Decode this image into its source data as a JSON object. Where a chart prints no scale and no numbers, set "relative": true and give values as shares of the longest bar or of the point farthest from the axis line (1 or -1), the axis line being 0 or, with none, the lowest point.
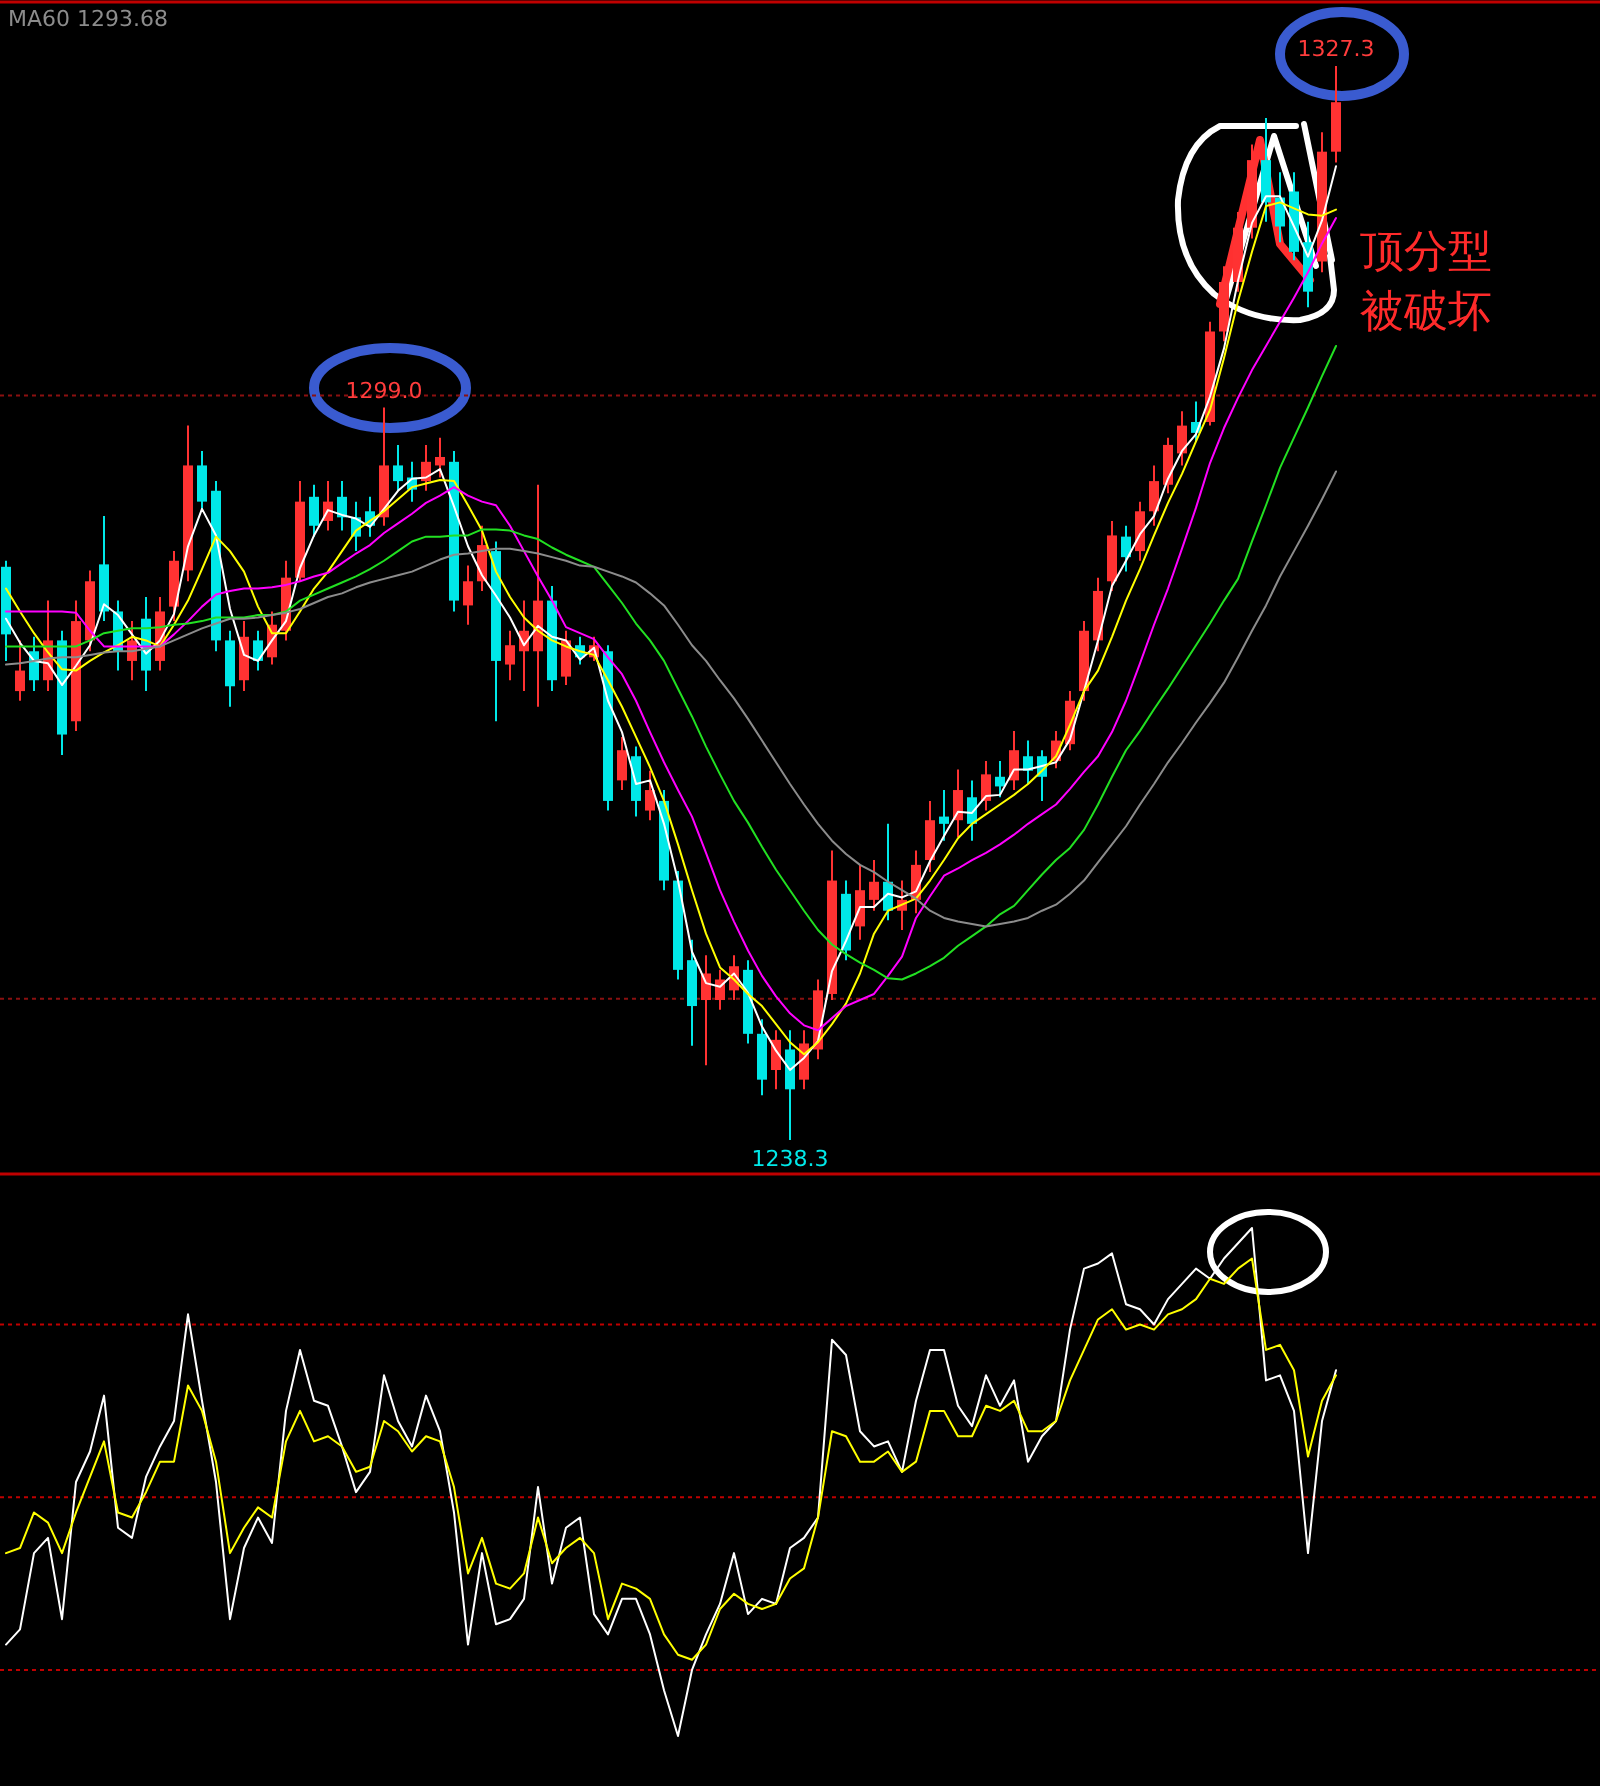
{
  "chart_data": [
    {
      "type": "candlestick",
      "tick_labels": false,
      "categories": [
        null,
        null,
        null,
        null,
        null,
        null,
        null,
        null,
        null,
        null,
        null,
        null,
        null,
        null,
        null,
        null,
        null,
        null,
        null,
        null,
        null,
        null,
        null,
        null,
        null,
        null,
        null,
        null,
        null,
        null,
        null,
        null,
        null,
        null,
        null,
        null,
        null,
        null,
        null,
        null,
        null,
        null,
        null,
        null,
        null,
        null,
        null,
        null,
        null,
        null,
        null,
        null,
        null,
        null,
        null,
        null,
        null,
        null,
        null,
        null,
        null,
        null,
        null,
        null,
        null,
        null,
        null,
        null,
        null,
        null,
        null,
        null,
        null,
        null,
        null,
        null,
        null,
        null,
        null,
        null,
        null,
        null,
        null,
        null,
        null,
        null,
        null,
        null,
        null,
        null,
        null,
        null,
        null,
        null,
        null,
        null
      ],
      "ohlc": [
        [
          1285.8,
          1286.3,
          1278.0,
          1280.2
        ],
        [
          1275.5,
          1279.7,
          1274.7,
          1277.2
        ],
        [
          1278.8,
          1280.0,
          1275.5,
          1276.4
        ],
        [
          1276.4,
          1283.0,
          1275.5,
          1279.7
        ],
        [
          1279.7,
          1280.5,
          1270.2,
          1271.9
        ],
        [
          1273.0,
          1283.0,
          1272.2,
          1281.3
        ],
        [
          1279.7,
          1285.5,
          1278.8,
          1284.6
        ],
        [
          1286.0,
          1290.0,
          1281.3,
          1282.1
        ],
        [
          1282.1,
          1283.0,
          1277.2,
          1278.8
        ],
        [
          1278.0,
          1281.3,
          1276.4,
          1279.7
        ],
        [
          1281.5,
          1283.3,
          1275.5,
          1277.2
        ],
        [
          1278.0,
          1283.3,
          1277.2,
          1282.1
        ],
        [
          1282.5,
          1287.1,
          1281.3,
          1286.3
        ],
        [
          1285.5,
          1297.5,
          1284.6,
          1294.2
        ],
        [
          1294.2,
          1295.4,
          1290.4,
          1291.2
        ],
        [
          1292.1,
          1292.9,
          1278.8,
          1279.7
        ],
        [
          1279.7,
          1280.5,
          1274.2,
          1275.9
        ],
        [
          1276.4,
          1281.3,
          1275.5,
          1280.0
        ],
        [
          1279.7,
          1280.5,
          1277.2,
          1278.0
        ],
        [
          1278.3,
          1282.1,
          1277.7,
          1281.0
        ],
        [
          1280.5,
          1286.3,
          1279.7,
          1284.9
        ],
        [
          1284.9,
          1292.9,
          1284.6,
          1291.2
        ],
        [
          1291.6,
          1292.6,
          1288.3,
          1289.2
        ],
        [
          1289.6,
          1292.9,
          1288.8,
          1291.2
        ],
        [
          1291.6,
          1292.9,
          1288.8,
          1289.9
        ],
        [
          1289.9,
          1291.2,
          1287.1,
          1288.3
        ],
        [
          1290.4,
          1291.6,
          1288.3,
          1289.2
        ],
        [
          1289.9,
          1299.0,
          1289.2,
          1294.2
        ],
        [
          1294.2,
          1295.9,
          1292.1,
          1292.9
        ],
        [
          1293.2,
          1294.5,
          1291.2,
          1292.2
        ],
        [
          1292.9,
          1295.9,
          1292.1,
          1294.5
        ],
        [
          1294.2,
          1296.5,
          1293.2,
          1294.9
        ],
        [
          1294.5,
          1295.4,
          1282.1,
          1283.0
        ],
        [
          1282.6,
          1285.9,
          1281.0,
          1284.6
        ],
        [
          1284.6,
          1289.2,
          1283.8,
          1287.6
        ],
        [
          1287.1,
          1287.9,
          1273.0,
          1278.0
        ],
        [
          1277.7,
          1280.5,
          1276.4,
          1279.3
        ],
        [
          1278.8,
          1283.0,
          1275.5,
          1280.5
        ],
        [
          1278.8,
          1292.6,
          1274.2,
          1283.0
        ],
        [
          1283.0,
          1284.2,
          1275.5,
          1276.4
        ],
        [
          1276.7,
          1280.5,
          1276.0,
          1279.7
        ],
        [
          1279.3,
          1280.0,
          1277.7,
          1278.3
        ],
        [
          1278.3,
          1280.0,
          1278.0,
          1279.3
        ],
        [
          1278.8,
          1279.3,
          1265.6,
          1266.4
        ],
        [
          1268.1,
          1271.7,
          1267.3,
          1270.6
        ],
        [
          1270.1,
          1270.9,
          1265.1,
          1266.4
        ],
        [
          1265.6,
          1268.9,
          1264.8,
          1267.3
        ],
        [
          1266.4,
          1267.3,
          1259.0,
          1259.8
        ],
        [
          1259.8,
          1260.6,
          1251.6,
          1252.4
        ],
        [
          1253.2,
          1254.9,
          1246.1,
          1249.4
        ],
        [
          1249.9,
          1253.6,
          1244.5,
          1252.1
        ],
        [
          1249.9,
          1252.4,
          1249.1,
          1251.6
        ],
        [
          1250.7,
          1253.6,
          1249.9,
          1252.7
        ],
        [
          1252.4,
          1253.2,
          1246.3,
          1247.1
        ],
        [
          1247.1,
          1248.3,
          1242.0,
          1243.3
        ],
        [
          1244.1,
          1247.4,
          1242.5,
          1246.6
        ],
        [
          1245.8,
          1247.4,
          1238.3,
          1242.5
        ],
        [
          1243.3,
          1247.4,
          1242.5,
          1246.3
        ],
        [
          1245.8,
          1251.6,
          1245.0,
          1250.7
        ],
        [
          1250.4,
          1262.3,
          1249.9,
          1259.8
        ],
        [
          1258.7,
          1259.8,
          1253.2,
          1254.0
        ],
        [
          1256.0,
          1261.1,
          1254.9,
          1259.0
        ],
        [
          1258.2,
          1261.5,
          1257.3,
          1259.7
        ],
        [
          1259.7,
          1264.5,
          1256.5,
          1257.3
        ],
        [
          1257.3,
          1259.8,
          1255.7,
          1258.2
        ],
        [
          1258.2,
          1262.3,
          1257.1,
          1261.1
        ],
        [
          1261.5,
          1266.4,
          1260.5,
          1264.8
        ],
        [
          1265.1,
          1267.3,
          1263.1,
          1264.5
        ],
        [
          1264.8,
          1269.0,
          1263.4,
          1267.3
        ],
        [
          1266.7,
          1268.1,
          1263.1,
          1264.5
        ],
        [
          1266.4,
          1269.7,
          1265.6,
          1268.6
        ],
        [
          1268.4,
          1269.7,
          1266.7,
          1267.6
        ],
        [
          1268.1,
          1272.2,
          1267.3,
          1270.6
        ],
        [
          1270.1,
          1271.4,
          1267.8,
          1268.9
        ],
        [
          1270.1,
          1270.6,
          1266.4,
          1268.4
        ],
        [
          1269.7,
          1272.2,
          1269.1,
          1271.4
        ],
        [
          1271.1,
          1275.5,
          1270.6,
          1274.7
        ],
        [
          1275.5,
          1281.3,
          1274.7,
          1280.5
        ],
        [
          1279.7,
          1284.9,
          1278.8,
          1283.8
        ],
        [
          1284.6,
          1289.6,
          1283.8,
          1288.4
        ],
        [
          1288.3,
          1289.2,
          1285.4,
          1286.6
        ],
        [
          1287.1,
          1291.2,
          1286.3,
          1290.4
        ],
        [
          1290.4,
          1294.2,
          1289.2,
          1292.9
        ],
        [
          1292.6,
          1296.5,
          1291.9,
          1295.9
        ],
        [
          1295.2,
          1298.7,
          1294.2,
          1297.5
        ],
        [
          1297.8,
          1299.5,
          1296.2,
          1296.9
        ],
        [
          1297.8,
          1306.1,
          1297.5,
          1305.3
        ],
        [
          1305.3,
          1310.7,
          1304.5,
          1309.4
        ],
        [
          1309.4,
          1315.2,
          1308.6,
          1313.9
        ],
        [
          1313.9,
          1320.8,
          1313.0,
          1319.5
        ],
        [
          1319.5,
          1323.0,
          1314.4,
          1316.0
        ],
        [
          1316.4,
          1318.5,
          1312.7,
          1314.0
        ],
        [
          1316.9,
          1318.5,
          1311.2,
          1311.9
        ],
        [
          1312.7,
          1314.4,
          1307.3,
          1308.6
        ],
        [
          1311.1,
          1321.8,
          1310.2,
          1320.2
        ],
        [
          1320.2,
          1327.3,
          1319.3,
          1324.3
        ]
      ],
      "series": [
        {
          "type": "line",
          "color": "#ffffff",
          "values": [
            1281.5,
            1279.5,
            1278.0,
            1277.8,
            1276.0,
            1277.6,
            1279.3,
            1282.7,
            1281.8,
            1280.2,
            1278.6,
            1279.7,
            1281.9,
            1287.5,
            1290.6,
            1288.4,
            1282.3,
            1278.5,
            1278.0,
            1279.7,
            1281.3,
            1285.7,
            1288.4,
            1290.5,
            1290.1,
            1289.8,
            1289.1,
            1290.6,
            1292.1,
            1293.1,
            1293.2,
            1293.9,
            1290.8,
            1287.5,
            1285.1,
            1283.4,
            1281.6,
            1279.3,
            1280.9,
            1280.0,
            1279.7,
            1278.1,
            1279.1,
            1274.7,
            1272.1,
            1267.8,
            1268.1,
            1264.5,
            1259.8,
            1253.9,
            1251.3,
            1251.0,
            1252.1,
            1250.5,
            1247.7,
            1245.7,
            1244.1,
            1245.1,
            1246.5,
            1252.3,
            1254.8,
            1257.6,
            1257.6,
            1258.7,
            1258.4,
            1258.9,
            1261.4,
            1263.5,
            1265.5,
            1265.4,
            1266.8,
            1266.9,
            1269.0,
            1269.0,
            1269.3,
            1269.6,
            1271.5,
            1275.5,
            1279.7,
            1284.2,
            1286.3,
            1288.5,
            1290.0,
            1293.1,
            1295.4,
            1296.8,
            1299.9,
            1303.9,
            1309.5,
            1314.3,
            1316.5,
            1316.5,
            1314.0,
            1311.5,
            1314.5,
            1319.0
          ]
        },
        {
          "type": "line",
          "color": "#ffff00",
          "values": [
            1284.0,
            1282.1,
            1280.3,
            1278.7,
            1277.3,
            1277.2,
            1278.0,
            1278.7,
            1279.3,
            1280.0,
            1279.7,
            1279.2,
            1281.0,
            1283.0,
            1285.6,
            1288.3,
            1287.1,
            1285.4,
            1282.5,
            1280.3,
            1280.3,
            1282.1,
            1284.0,
            1285.4,
            1287.1,
            1288.8,
            1289.6,
            1290.4,
            1291.4,
            1292.4,
            1292.7,
            1293.0,
            1292.9,
            1290.9,
            1288.8,
            1285.4,
            1283.3,
            1281.6,
            1280.5,
            1279.7,
            1279.2,
            1278.8,
            1278.5,
            1276.4,
            1274.2,
            1271.7,
            1269.2,
            1266.4,
            1262.8,
            1259.0,
            1255.4,
            1252.6,
            1251.6,
            1250.4,
            1249.4,
            1247.9,
            1246.4,
            1245.4,
            1246.4,
            1247.9,
            1249.6,
            1252.1,
            1255.4,
            1257.3,
            1257.8,
            1258.3,
            1259.8,
            1261.5,
            1263.3,
            1264.5,
            1265.3,
            1266.1,
            1266.9,
            1267.8,
            1268.9,
            1270.1,
            1272.7,
            1275.5,
            1277.2,
            1280.0,
            1283.0,
            1285.6,
            1288.4,
            1291.1,
            1293.5,
            1296.2,
            1298.8,
            1303.1,
            1307.8,
            1311.9,
            1315.7,
            1316.0,
            1315.5,
            1315.0,
            1314.9,
            1315.4
          ]
        },
        {
          "type": "line",
          "color": "#ff00ff",
          "values": [
            1282.1,
            1282.1,
            1282.1,
            1282.1,
            1282.1,
            1282.0,
            1280.5,
            1279.2,
            1279.2,
            1279.2,
            1279.2,
            1279.2,
            1280.2,
            1281.3,
            1282.5,
            1283.5,
            1283.8,
            1284.0,
            1284.0,
            1284.1,
            1284.3,
            1284.6,
            1285.0,
            1285.3,
            1286.1,
            1286.9,
            1287.6,
            1288.6,
            1289.4,
            1290.2,
            1291.1,
            1291.7,
            1292.4,
            1291.7,
            1291.2,
            1290.9,
            1289.2,
            1287.1,
            1285.0,
            1283.0,
            1280.8,
            1280.3,
            1279.8,
            1278.3,
            1276.9,
            1274.7,
            1272.1,
            1269.6,
            1267.3,
            1265.1,
            1262.1,
            1259.0,
            1256.4,
            1254.0,
            1251.9,
            1250.2,
            1248.8,
            1247.8,
            1247.4,
            1248.4,
            1249.4,
            1249.9,
            1250.4,
            1251.9,
            1253.5,
            1256.7,
            1258.5,
            1260.2,
            1260.8,
            1261.5,
            1262.1,
            1262.8,
            1263.6,
            1264.5,
            1265.3,
            1266.1,
            1267.4,
            1268.8,
            1270.1,
            1272.1,
            1274.7,
            1277.8,
            1281.0,
            1284.0,
            1287.3,
            1290.7,
            1294.4,
            1297.3,
            1299.8,
            1302.1,
            1304.1,
            1306.1,
            1308.1,
            1310.2,
            1312.6,
            1314.7
          ]
        },
        {
          "type": "line",
          "color": "#22e022",
          "values": [
            1279.2,
            1279.2,
            1279.2,
            1279.2,
            1279.2,
            1279.2,
            1279.7,
            1280.3,
            1280.5,
            1280.7,
            1280.7,
            1280.8,
            1281.0,
            1281.1,
            1281.3,
            1281.6,
            1281.6,
            1281.6,
            1281.8,
            1281.8,
            1282.1,
            1283.0,
            1283.5,
            1284.0,
            1284.5,
            1285.0,
            1285.6,
            1286.3,
            1287.1,
            1287.9,
            1288.3,
            1288.3,
            1288.4,
            1288.4,
            1288.9,
            1288.9,
            1288.8,
            1288.4,
            1288.1,
            1287.4,
            1286.8,
            1286.3,
            1285.8,
            1284.3,
            1282.8,
            1281.1,
            1279.7,
            1278.0,
            1275.7,
            1273.4,
            1270.9,
            1268.6,
            1266.4,
            1264.6,
            1262.6,
            1260.7,
            1259.0,
            1257.3,
            1255.7,
            1254.5,
            1253.7,
            1253.0,
            1252.4,
            1251.7,
            1251.6,
            1252.1,
            1252.7,
            1253.4,
            1254.4,
            1255.2,
            1256.0,
            1257.0,
            1257.7,
            1259.0,
            1260.3,
            1261.5,
            1262.5,
            1264.0,
            1266.1,
            1268.4,
            1270.6,
            1272.2,
            1274.0,
            1275.7,
            1277.5,
            1279.3,
            1281.1,
            1283.0,
            1284.8,
            1287.9,
            1290.9,
            1294.0,
            1296.5,
            1299.0,
            1301.6,
            1304.1
          ]
        },
        {
          "type": "line",
          "name": "MA60 1293.68",
          "color": "#8c8c8c",
          "values": [
            1277.7,
            1277.8,
            1278.0,
            1278.2,
            1278.3,
            1278.3,
            1278.5,
            1278.7,
            1278.8,
            1278.8,
            1279.0,
            1279.2,
            1279.7,
            1280.2,
            1280.7,
            1281.1,
            1281.5,
            1281.5,
            1281.6,
            1281.8,
            1282.0,
            1282.3,
            1282.8,
            1283.3,
            1283.6,
            1284.1,
            1284.5,
            1284.8,
            1285.1,
            1285.4,
            1285.9,
            1286.4,
            1286.8,
            1286.9,
            1287.1,
            1287.3,
            1287.3,
            1287.1,
            1286.9,
            1286.6,
            1286.3,
            1285.9,
            1285.8,
            1285.4,
            1285.0,
            1284.5,
            1283.6,
            1282.6,
            1281.0,
            1279.3,
            1278.0,
            1276.4,
            1274.9,
            1273.2,
            1271.4,
            1269.6,
            1267.8,
            1266.1,
            1264.5,
            1263.1,
            1262.0,
            1261.1,
            1260.5,
            1259.7,
            1259.0,
            1258.3,
            1257.3,
            1256.7,
            1256.4,
            1256.2,
            1256.0,
            1256.2,
            1256.4,
            1256.7,
            1257.3,
            1257.8,
            1258.7,
            1259.8,
            1261.3,
            1262.8,
            1264.3,
            1266.1,
            1267.8,
            1269.6,
            1271.2,
            1272.9,
            1274.5,
            1276.2,
            1278.3,
            1280.5,
            1282.6,
            1285.0,
            1287.1,
            1289.2,
            1291.4,
            1293.7
          ]
        }
      ],
      "annotations": [
        {
          "text": "1327.3",
          "y": 1327.3
        },
        {
          "text": "1299.0",
          "y": 1299.0
        },
        {
          "text": "1238.3",
          "y": 1238.3
        },
        "顶分型被破坏"
      ],
      "ref_lines": [
        {
          "axis": "y",
          "value": 1300,
          "color": "#8b1010",
          "line_style": "dotted"
        },
        {
          "axis": "y",
          "value": 1250,
          "color": "#8b1010",
          "line_style": "dotted"
        }
      ]
    },
    {
      "type": "line",
      "relative": true,
      "tick_labels": false,
      "categories": [
        null,
        null,
        null,
        null,
        null,
        null,
        null,
        null,
        null,
        null,
        null,
        null,
        null,
        null,
        null,
        null,
        null,
        null,
        null,
        null,
        null,
        null,
        null,
        null,
        null,
        null,
        null,
        null,
        null,
        null,
        null,
        null,
        null,
        null,
        null,
        null,
        null,
        null,
        null,
        null,
        null,
        null,
        null,
        null,
        null,
        null,
        null,
        null,
        null,
        null,
        null,
        null,
        null,
        null,
        null,
        null,
        null,
        null,
        null,
        null,
        null,
        null,
        null,
        null,
        null,
        null,
        null,
        null,
        null,
        null,
        null,
        null,
        null,
        null,
        null,
        null,
        null,
        null,
        null,
        null,
        null,
        null,
        null,
        null,
        null,
        null,
        null,
        null,
        null,
        null,
        null,
        null,
        null,
        null,
        null,
        null
      ],
      "series": [
        {
          "color": "#ffffff",
          "values": [
            0.18,
            0.21,
            0.36,
            0.39,
            0.23,
            0.5,
            0.56,
            0.67,
            0.41,
            0.39,
            0.51,
            0.57,
            0.62,
            0.83,
            0.66,
            0.5,
            0.23,
            0.37,
            0.43,
            0.38,
            0.64,
            0.76,
            0.66,
            0.65,
            0.57,
            0.48,
            0.52,
            0.71,
            0.62,
            0.57,
            0.67,
            0.6,
            0.44,
            0.18,
            0.36,
            0.22,
            0.23,
            0.27,
            0.49,
            0.3,
            0.41,
            0.43,
            0.24,
            0.2,
            0.27,
            0.27,
            0.2,
            0.09,
            0,
            0.13,
            0.2,
            0.26,
            0.36,
            0.24,
            0.27,
            0.26,
            0.37,
            0.39,
            0.43,
            0.78,
            0.75,
            0.6,
            0.57,
            0.58,
            0.52,
            0.66,
            0.76,
            0.76,
            0.65,
            0.61,
            0.71,
            0.65,
            0.7,
            0.54,
            0.59,
            0.62,
            0.8,
            0.92,
            0.93,
            0.95,
            0.85,
            0.84,
            0.81,
            0.86,
            0.89,
            0.92,
            0.9,
            0.94,
            0.97,
            1,
            0.7,
            0.71,
            0.64,
            0.36,
            0.62,
            0.72
          ]
        },
        {
          "color": "#ffff00",
          "values": [
            0.36,
            0.37,
            0.44,
            0.42,
            0.36,
            0.44,
            0.51,
            0.58,
            0.44,
            0.43,
            0.48,
            0.54,
            0.54,
            0.69,
            0.64,
            0.54,
            0.36,
            0.41,
            0.45,
            0.43,
            0.58,
            0.64,
            0.58,
            0.59,
            0.57,
            0.52,
            0.53,
            0.62,
            0.6,
            0.56,
            0.59,
            0.58,
            0.49,
            0.32,
            0.39,
            0.3,
            0.29,
            0.32,
            0.43,
            0.34,
            0.37,
            0.39,
            0.36,
            0.23,
            0.3,
            0.29,
            0.27,
            0.2,
            0.16,
            0.15,
            0.18,
            0.25,
            0.28,
            0.26,
            0.25,
            0.26,
            0.31,
            0.33,
            0.43,
            0.6,
            0.59,
            0.54,
            0.54,
            0.56,
            0.52,
            0.54,
            0.64,
            0.64,
            0.59,
            0.59,
            0.65,
            0.64,
            0.66,
            0.6,
            0.6,
            0.62,
            0.7,
            0.76,
            0.82,
            0.84,
            0.8,
            0.81,
            0.8,
            0.83,
            0.84,
            0.86,
            0.9,
            0.89,
            0.92,
            0.94,
            0.76,
            0.77,
            0.72,
            0.55,
            0.66,
            0.71
          ]
        }
      ],
      "ref_lines": [
        {
          "axis": "y",
          "value": 0.81,
          "color": "#c00000",
          "line_style": "dotted"
        },
        {
          "axis": "y",
          "value": 0.47,
          "color": "#c00000",
          "line_style": "dotted"
        },
        {
          "axis": "y",
          "value": 0.13,
          "color": "#c00000",
          "line_style": "dotted"
        }
      ]
    }
  ]
}
